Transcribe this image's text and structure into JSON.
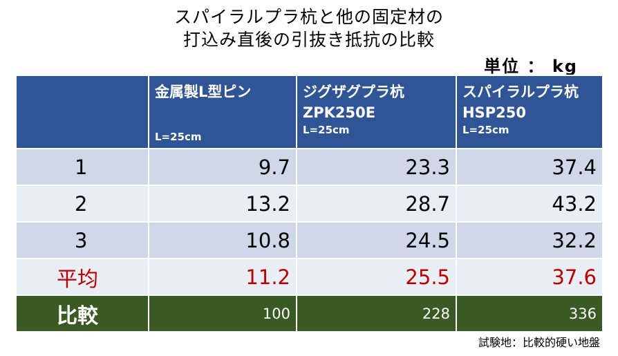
{
  "title": {
    "line1": "スパイラルプラ杭と他の固定材の",
    "line2": "打込み直後の引抜き抵抗の比較"
  },
  "unit": "単位 ： kg",
  "columns": [
    {
      "name": "金属製L型ピン",
      "model": "",
      "length": "L=25cm"
    },
    {
      "name": "ジグザグプラ杭",
      "model": "ZPK250E",
      "length": "L=25cm"
    },
    {
      "name": "スパイラルプラ杭",
      "model": "HSP250",
      "length": "L=25cm"
    }
  ],
  "rows": [
    {
      "label": "1",
      "values": [
        "9.7",
        "23.3",
        "37.4"
      ]
    },
    {
      "label": "2",
      "values": [
        "13.2",
        "28.7",
        "43.2"
      ]
    },
    {
      "label": "3",
      "values": [
        "10.8",
        "24.5",
        "32.2"
      ]
    }
  ],
  "average": {
    "label": "平均",
    "values": [
      "11.2",
      "25.5",
      "37.6"
    ]
  },
  "comparison": {
    "label": "比較",
    "values": [
      "100",
      "228",
      "336"
    ]
  },
  "note": "試験地：比較的硬い地盤",
  "colors": {
    "header_bg": "#2f5597",
    "row_odd_bg": "#cfd7e8",
    "row_even_bg": "#e9edf4",
    "average_text": "#c00000",
    "comparison_bg": "#3a5a23"
  }
}
